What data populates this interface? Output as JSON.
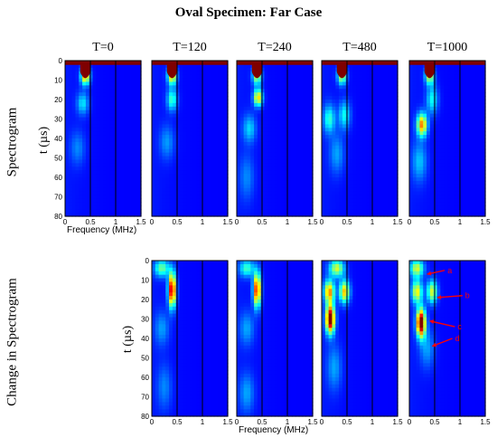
{
  "title": "Oval Specimen:  Far Case",
  "row_labels": [
    "Spectrogram",
    "Change in Spectrogram"
  ],
  "ylabel": "t (µs)",
  "xlabel": "Frequency (MHz)",
  "chart_data": [
    {
      "type": "heatmap",
      "row": "Spectrogram",
      "xlabel": "Frequency (MHz)",
      "ylabel": "t (µs)",
      "xlim": [
        0,
        1.5
      ],
      "ylim": [
        0,
        80
      ],
      "xticks": [
        0,
        0.5,
        1,
        1.5
      ],
      "yticks": [
        0,
        10,
        20,
        30,
        40,
        50,
        60,
        70,
        80
      ],
      "colorscale": [
        "#00007f",
        "#0000ff",
        "#00ffff",
        "#ffff00",
        "#ff0000",
        "#7f0000"
      ],
      "panels": [
        {
          "label": "T=0",
          "ytick_labels": true,
          "xtick_labels": true,
          "show_xlabel": true,
          "blobs": [
            {
              "f": 0.4,
              "t": 8,
              "sf": 0.06,
              "st": 3,
              "a": 0.6
            },
            {
              "f": 0.35,
              "t": 22,
              "sf": 0.08,
              "st": 4,
              "a": 0.22
            },
            {
              "f": 0.25,
              "t": 45,
              "sf": 0.1,
              "st": 6,
              "a": 0.12
            }
          ]
        },
        {
          "label": "T=120",
          "ytick_labels": false,
          "xtick_labels": true,
          "blobs": [
            {
              "f": 0.4,
              "t": 8,
              "sf": 0.06,
              "st": 3,
              "a": 0.55
            },
            {
              "f": 0.4,
              "t": 20,
              "sf": 0.07,
              "st": 4,
              "a": 0.3
            },
            {
              "f": 0.3,
              "t": 42,
              "sf": 0.1,
              "st": 6,
              "a": 0.14
            }
          ]
        },
        {
          "label": "T=240",
          "ytick_labels": false,
          "xtick_labels": true,
          "blobs": [
            {
              "f": 0.4,
              "t": 8,
              "sf": 0.06,
              "st": 3,
              "a": 0.45
            },
            {
              "f": 0.42,
              "t": 19,
              "sf": 0.06,
              "st": 3,
              "a": 0.55
            },
            {
              "f": 0.25,
              "t": 35,
              "sf": 0.09,
              "st": 5,
              "a": 0.2
            },
            {
              "f": 0.2,
              "t": 60,
              "sf": 0.1,
              "st": 8,
              "a": 0.12
            }
          ]
        },
        {
          "label": "T=480",
          "ytick_labels": false,
          "xtick_labels": true,
          "blobs": [
            {
              "f": 0.4,
              "t": 8,
              "sf": 0.06,
              "st": 3,
              "a": 0.45
            },
            {
              "f": 0.15,
              "t": 30,
              "sf": 0.08,
              "st": 5,
              "a": 0.28
            },
            {
              "f": 0.45,
              "t": 28,
              "sf": 0.08,
              "st": 5,
              "a": 0.25
            },
            {
              "f": 0.3,
              "t": 48,
              "sf": 0.1,
              "st": 7,
              "a": 0.15
            }
          ]
        },
        {
          "label": "T=1000",
          "ytick_labels": false,
          "xtick_labels": true,
          "blobs": [
            {
              "f": 0.4,
              "t": 8,
              "sf": 0.06,
              "st": 3,
              "a": 0.45
            },
            {
              "f": 0.25,
              "t": 33,
              "sf": 0.07,
              "st": 4,
              "a": 0.62
            },
            {
              "f": 0.45,
              "t": 20,
              "sf": 0.08,
              "st": 5,
              "a": 0.25
            },
            {
              "f": 0.2,
              "t": 52,
              "sf": 0.1,
              "st": 7,
              "a": 0.18
            }
          ]
        }
      ]
    },
    {
      "type": "heatmap",
      "row": "Change in Spectrogram",
      "xlabel": "Frequency (MHz)",
      "ylabel": "t (µs)",
      "xlim": [
        0,
        1.5
      ],
      "ylim": [
        0,
        80
      ],
      "xticks": [
        0,
        0.5,
        1,
        1.5
      ],
      "yticks": [
        0,
        10,
        20,
        30,
        40,
        50,
        60,
        70,
        80
      ],
      "colorscale": [
        "#00007f",
        "#0000ff",
        "#00ffff",
        "#ffff00",
        "#ff0000",
        "#7f0000"
      ],
      "panels": [
        {
          "label": "T=120",
          "ytick_labels": true,
          "xtick_labels": true,
          "blobs": [
            {
              "f": 0.4,
              "t": 15,
              "sf": 0.05,
              "st": 6,
              "a": 0.85
            },
            {
              "f": 0.2,
              "t": 4,
              "sf": 0.1,
              "st": 3,
              "a": 0.35
            },
            {
              "f": 0.2,
              "t": 35,
              "sf": 0.1,
              "st": 6,
              "a": 0.14
            },
            {
              "f": 0.25,
              "t": 65,
              "sf": 0.1,
              "st": 8,
              "a": 0.12
            }
          ]
        },
        {
          "label": "T=240",
          "ytick_labels": false,
          "xtick_labels": true,
          "show_xlabel": true,
          "blobs": [
            {
              "f": 0.4,
              "t": 15,
              "sf": 0.05,
              "st": 6,
              "a": 0.75
            },
            {
              "f": 0.2,
              "t": 4,
              "sf": 0.1,
              "st": 3,
              "a": 0.3
            },
            {
              "f": 0.2,
              "t": 35,
              "sf": 0.1,
              "st": 6,
              "a": 0.15
            },
            {
              "f": 0.2,
              "t": 68,
              "sf": 0.1,
              "st": 7,
              "a": 0.15
            }
          ]
        },
        {
          "label": "T=480",
          "ytick_labels": false,
          "xtick_labels": true,
          "blobs": [
            {
              "f": 0.17,
              "t": 30,
              "sf": 0.06,
              "st": 5,
              "a": 0.95
            },
            {
              "f": 0.15,
              "t": 16,
              "sf": 0.07,
              "st": 4,
              "a": 0.6
            },
            {
              "f": 0.45,
              "t": 16,
              "sf": 0.07,
              "st": 4,
              "a": 0.55
            },
            {
              "f": 0.3,
              "t": 4,
              "sf": 0.1,
              "st": 3,
              "a": 0.45
            },
            {
              "f": 0.25,
              "t": 55,
              "sf": 0.1,
              "st": 8,
              "a": 0.15
            }
          ]
        },
        {
          "label": "T=1000",
          "ytick_labels": false,
          "xtick_labels": true,
          "blobs": [
            {
              "f": 0.23,
              "t": 32,
              "sf": 0.06,
              "st": 5,
              "a": 0.95
            },
            {
              "f": 0.15,
              "t": 16,
              "sf": 0.07,
              "st": 4,
              "a": 0.5
            },
            {
              "f": 0.45,
              "t": 16,
              "sf": 0.07,
              "st": 4,
              "a": 0.45
            },
            {
              "f": 0.15,
              "t": 4,
              "sf": 0.09,
              "st": 3,
              "a": 0.45
            },
            {
              "f": 0.35,
              "t": 45,
              "sf": 0.1,
              "st": 7,
              "a": 0.15
            }
          ],
          "annotations": [
            {
              "label": "a",
              "from": [
                0.7,
                5
              ],
              "to": [
                0.35,
                7
              ]
            },
            {
              "label": "b",
              "from": [
                1.05,
                18
              ],
              "to": [
                0.55,
                19
              ]
            },
            {
              "label": "c",
              "from": [
                0.9,
                34
              ],
              "to": [
                0.4,
                31
              ]
            },
            {
              "label": "d",
              "from": [
                0.85,
                40
              ],
              "to": [
                0.45,
                44
              ]
            }
          ]
        }
      ]
    }
  ]
}
